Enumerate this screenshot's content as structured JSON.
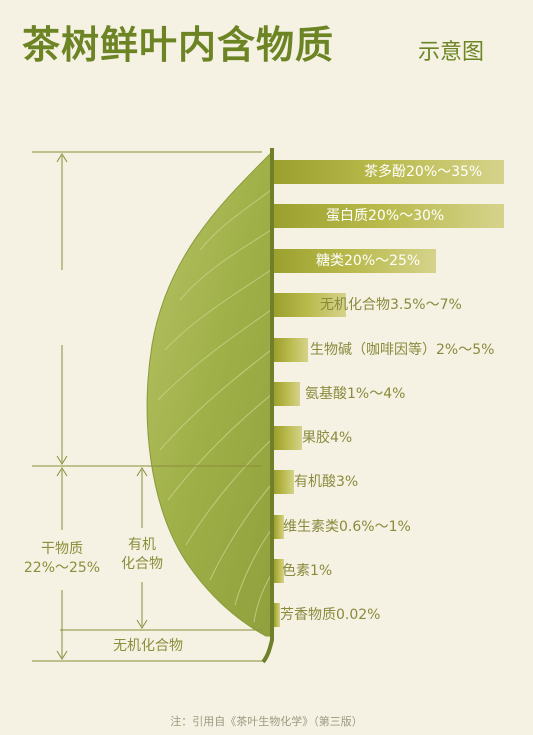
{
  "title": "茶树鲜叶内含物质",
  "subtitle": "示意图",
  "components": [
    {
      "label": "茶多酚20%～35%"
    },
    {
      "label": "蛋白质20%～30%"
    },
    {
      "label": "糖类20%～25%"
    },
    {
      "label": "无机化合物3.5%～7%"
    },
    {
      "label": "生物碱（咖啡因等）2%～5%"
    },
    {
      "label": "氨基酸1%～4%"
    },
    {
      "label": "果胶4%"
    },
    {
      "label": "有机酸3%"
    },
    {
      "label": "维生素类0.6%～1%"
    },
    {
      "label": "色素1%"
    },
    {
      "label": "芳香物质0.02%"
    }
  ],
  "bracket_labels": {
    "dry_matter_line1": "干物质",
    "dry_matter_line2": "22%～25%",
    "organic_line1": "有机",
    "organic_line2": "化合物",
    "inorganic": "无机化合物"
  },
  "note": "注：引用自《茶叶生物化学》（第三版）",
  "colors": {
    "title": "#6c8423",
    "leaf": "#a3b34c",
    "bar_start": "#9aa02e",
    "bar_end": "#d5d38b",
    "label_muted": "#8b8e3a"
  }
}
